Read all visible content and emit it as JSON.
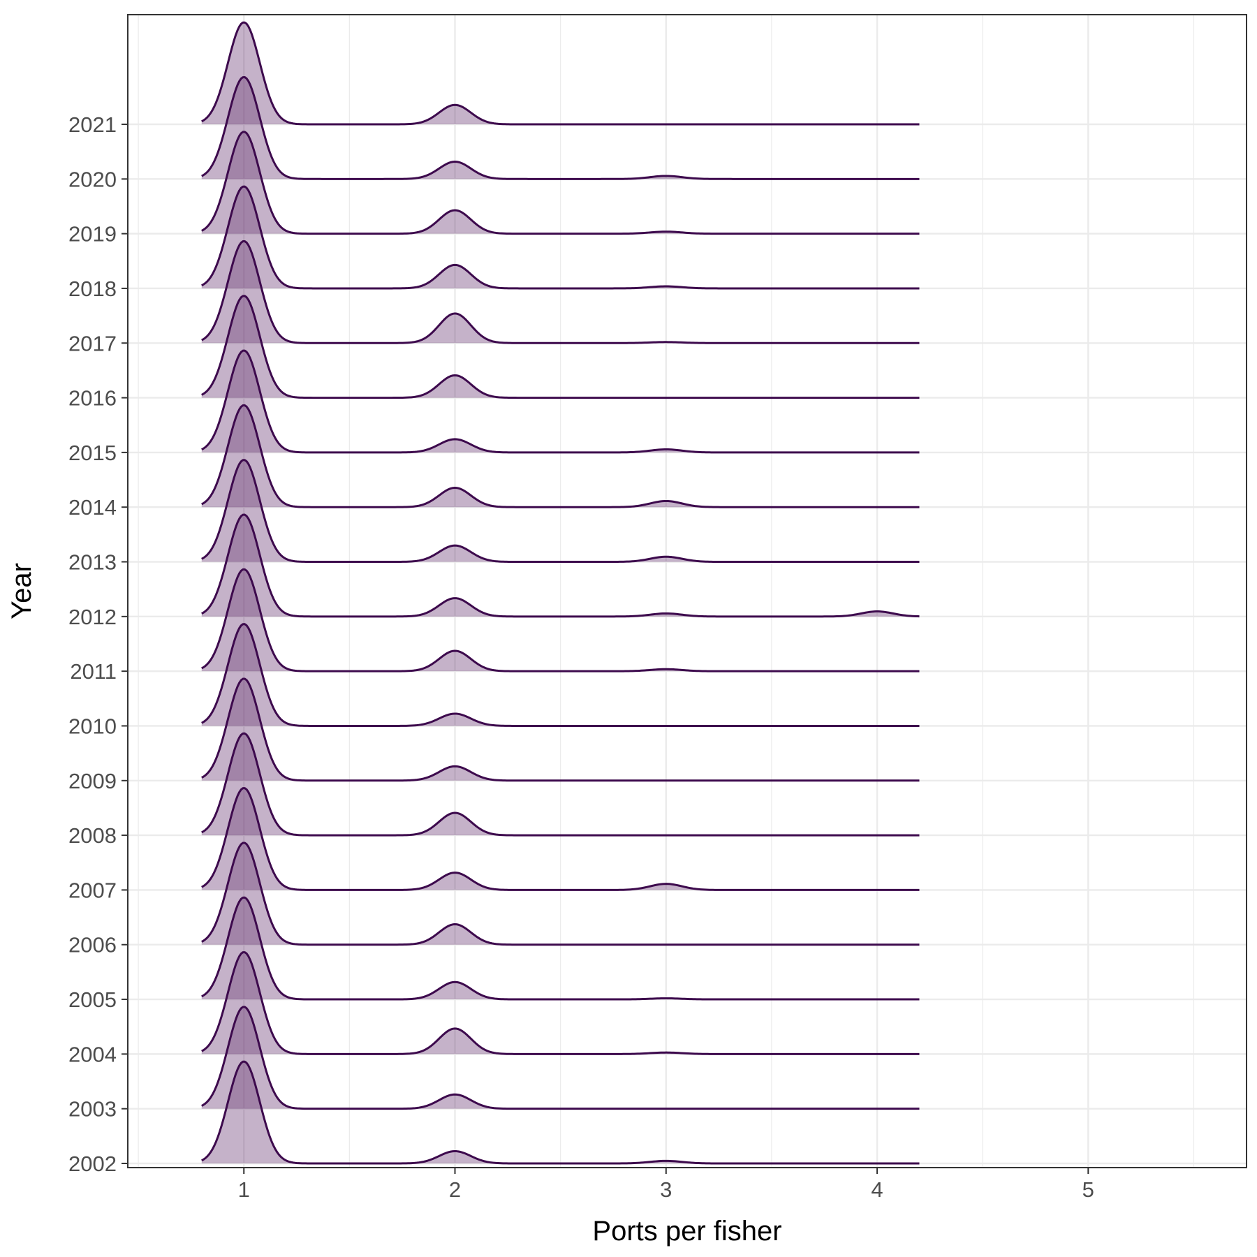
{
  "chart_data": {
    "type": "ridgeline",
    "title": "",
    "xlabel": "Ports per fisher",
    "ylabel": "Year",
    "xlim": [
      0.45,
      5.75
    ],
    "x_ticks": [
      1,
      2,
      3,
      4,
      5
    ],
    "x_ticklabels": [
      "1",
      "2",
      "3",
      "4",
      "5"
    ],
    "density_x_range": [
      0.8,
      4.2
    ],
    "grid": true,
    "legend": "none",
    "colors": {
      "fill": "#6e3f78",
      "line": "#3d0a4d",
      "grid": "#ebebeb",
      "panel_border": "#333333"
    },
    "series": [
      {
        "name": "2002",
        "peaks": [
          [
            1,
            1.0
          ],
          [
            2,
            0.12
          ],
          [
            3,
            0.025
          ]
        ]
      },
      {
        "name": "2003",
        "peaks": [
          [
            1,
            1.0
          ],
          [
            2,
            0.14
          ]
        ]
      },
      {
        "name": "2004",
        "peaks": [
          [
            1,
            1.0
          ],
          [
            2,
            0.25
          ],
          [
            3,
            0.015
          ]
        ]
      },
      {
        "name": "2005",
        "peaks": [
          [
            1,
            1.0
          ],
          [
            2,
            0.17
          ],
          [
            3,
            0.01
          ]
        ]
      },
      {
        "name": "2006",
        "peaks": [
          [
            1,
            1.0
          ],
          [
            2,
            0.2
          ]
        ]
      },
      {
        "name": "2007",
        "peaks": [
          [
            1,
            1.0
          ],
          [
            2,
            0.17
          ],
          [
            3,
            0.06
          ]
        ]
      },
      {
        "name": "2008",
        "peaks": [
          [
            1,
            1.0
          ],
          [
            2,
            0.22
          ]
        ]
      },
      {
        "name": "2009",
        "peaks": [
          [
            1,
            1.0
          ],
          [
            2,
            0.14
          ]
        ]
      },
      {
        "name": "2010",
        "peaks": [
          [
            1,
            1.0
          ],
          [
            2,
            0.12
          ]
        ]
      },
      {
        "name": "2011",
        "peaks": [
          [
            1,
            1.0
          ],
          [
            2,
            0.2
          ],
          [
            3,
            0.02
          ]
        ]
      },
      {
        "name": "2012",
        "peaks": [
          [
            1,
            1.0
          ],
          [
            2,
            0.18
          ],
          [
            3,
            0.03
          ],
          [
            4,
            0.05
          ]
        ]
      },
      {
        "name": "2013",
        "peaks": [
          [
            1,
            1.0
          ],
          [
            2,
            0.16
          ],
          [
            3,
            0.05
          ]
        ]
      },
      {
        "name": "2014",
        "peaks": [
          [
            1,
            1.0
          ],
          [
            2,
            0.19
          ],
          [
            3,
            0.06
          ]
        ]
      },
      {
        "name": "2015",
        "peaks": [
          [
            1,
            1.0
          ],
          [
            2,
            0.13
          ],
          [
            3,
            0.03
          ]
        ]
      },
      {
        "name": "2016",
        "peaks": [
          [
            1,
            1.0
          ],
          [
            2,
            0.22
          ]
        ]
      },
      {
        "name": "2017",
        "peaks": [
          [
            1,
            1.0
          ],
          [
            2,
            0.29
          ],
          [
            3,
            0.01
          ]
        ]
      },
      {
        "name": "2018",
        "peaks": [
          [
            1,
            1.0
          ],
          [
            2,
            0.23
          ],
          [
            3,
            0.02
          ]
        ]
      },
      {
        "name": "2019",
        "peaks": [
          [
            1,
            1.0
          ],
          [
            2,
            0.23
          ],
          [
            3,
            0.02
          ]
        ]
      },
      {
        "name": "2020",
        "peaks": [
          [
            1,
            1.0
          ],
          [
            2,
            0.17
          ],
          [
            3,
            0.03
          ]
        ]
      },
      {
        "name": "2021",
        "peaks": [
          [
            1,
            1.0
          ],
          [
            2,
            0.19
          ]
        ]
      }
    ]
  }
}
